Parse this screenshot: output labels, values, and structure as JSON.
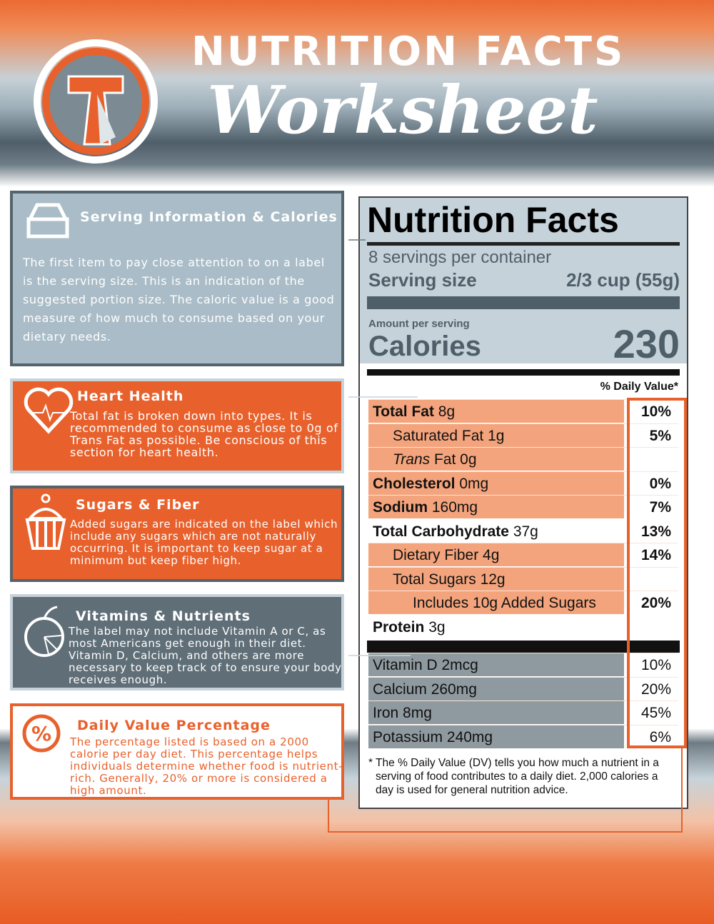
{
  "header": {
    "title": "NUTRITION FACTS",
    "subtitle": "Worksheet"
  },
  "sections": [
    {
      "title": "Serving Information & Calories",
      "text": "The first item to pay close attention to on a label is the serving size. This is an indication of the suggested portion size. The caloric value is a good measure of how much to consume based on your dietary needs."
    },
    {
      "title": "Heart Health",
      "text": "Total fat is broken down into types. It is recommended to consume as close to 0g of Trans Fat as possible. Be conscious of this section for heart health."
    },
    {
      "title": "Sugars & Fiber",
      "text": "Added sugars are indicated on the label which include any sugars which are not naturally occurring. It is important to keep sugar at a minimum but keep fiber high."
    },
    {
      "title": "Vitamins & Nutrients",
      "text": "The label may not include Vitamin A or C, as most Americans get enough in their diet. Vitamin D, Calcium, and others are more necessary to keep track of to ensure your body receives enough."
    },
    {
      "title": "Daily Value Percentage",
      "text": "The percentage listed is based on a 2000 calorie per day diet. This percentage helps individuals determine whether food is nutrient-rich. Generally, 20% or more is considered a high amount."
    }
  ],
  "label": {
    "title": "Nutrition Facts",
    "servings": "8 servings per container",
    "serving_size_label": "Serving size",
    "serving_size_value": "2/3 cup (55g)",
    "amount_per_serving": "Amount per serving",
    "calories_label": "Calories",
    "calories_value": "230",
    "dv_header": "% Daily Value*",
    "rows": [
      {
        "name": "Total Fat",
        "amount": "8g",
        "dv": "10%",
        "bold": true,
        "indent": 0,
        "shade": "orange"
      },
      {
        "name": "Saturated Fat",
        "amount": "1g",
        "dv": "5%",
        "bold": false,
        "indent": 1,
        "shade": "orange"
      },
      {
        "name": "Trans",
        "amount": "Fat 0g",
        "italic": true,
        "bold": false,
        "indent": 1,
        "shade": "orange"
      },
      {
        "name": "Cholesterol",
        "amount": "0mg",
        "dv": "0%",
        "bold": true,
        "indent": 0,
        "shade": "orange"
      },
      {
        "name": "Sodium",
        "amount": "160mg",
        "dv": "7%",
        "bold": true,
        "indent": 0,
        "shade": "orange"
      },
      {
        "name": "Total Carbohydrate",
        "amount": "37g",
        "dv": "13%",
        "bold": true,
        "indent": 0,
        "shade": "white"
      },
      {
        "name": "Dietary Fiber",
        "amount": "4g",
        "dv": "14%",
        "bold": false,
        "indent": 1,
        "shade": "orange"
      },
      {
        "name": "Total Sugars",
        "amount": "12g",
        "bold": false,
        "indent": 1,
        "shade": "orange"
      },
      {
        "name": "Includes 10g Added Sugars",
        "dv": "20%",
        "bold": false,
        "indent": 2,
        "shade": "orange"
      },
      {
        "name": "Protein",
        "amount": "3g",
        "bold": true,
        "indent": 0,
        "shade": "white"
      },
      {
        "name": "Vitamin D",
        "amount": "2mcg",
        "dv": "10%",
        "bold": false,
        "indent": 0,
        "shade": "gray"
      },
      {
        "name": "Calcium",
        "amount": "260mg",
        "dv": "20%",
        "bold": false,
        "indent": 0,
        "shade": "gray"
      },
      {
        "name": "Iron",
        "amount": "8mg",
        "dv": "45%",
        "bold": false,
        "indent": 0,
        "shade": "gray"
      },
      {
        "name": "Potassium",
        "amount": "240mg",
        "dv": "6%",
        "bold": false,
        "indent": 0,
        "shade": "gray"
      }
    ],
    "footnote": "* The % Daily Value (DV) tells you how much a nutrient in a serving of food contributes to a daily diet. 2,000 calories a day is used for general nutrition advice."
  }
}
